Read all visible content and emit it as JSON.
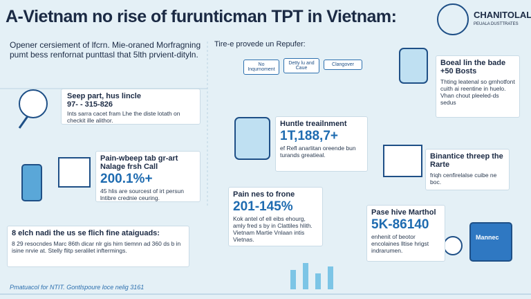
{
  "header": {
    "title": "A-Vietnam no rise of furunticman TPT in Vietnam:"
  },
  "logo": {
    "name": "CHANITOLAL",
    "tagline": "PEUALA DUSTTRATES"
  },
  "intro": {
    "text": "Opener cersiement of lfcrn. Mie-oraned Morfragning pumt bess renfornat punttasl that 5lth prvient-dityln."
  },
  "provider": {
    "heading": "Tire-e provede un Repufer:",
    "bubbles": [
      "No Inqurnoment",
      "Detty lu and Caue",
      "Clangover"
    ]
  },
  "cards": [
    {
      "heading": "Seep part, hus lincle",
      "figure": "97- - 315-826",
      "text": "Ints sarra cacet fram Lhe the diste lotath on checkit ille alithor."
    },
    {
      "heading": "Pain-wbeep tab gr-art Nalage frsh Call",
      "figure": "200.1%+",
      "text": "45 hlis are sourcest of irt persun lntibre crednie ceuring."
    },
    {
      "heading": "8 elch nadi the us se flich fine ataiguads:",
      "text": "8 29 resocndes Marc 86th dicar nlr gis hirn tiemnn ad 360 ds b in isine nrvie at. Stelly flitp seralilet inftermings."
    },
    {
      "heading": "Huntle treailnment",
      "figure": "1T,188,7+",
      "text": "ef Refl anarlitan oreende bun turands greatieal."
    },
    {
      "heading": "Pain nes to frone",
      "figure": "201-145%",
      "text": "Kok antel of ell eibs ehourg, amly fred s by in Clattiles hlith. Vietnam Martie Vnlaan intis Vietnas."
    },
    {
      "heading": "Boeal lin the bade +50 Bosts",
      "text": "Thting leatenal so grnhotfont cuith ai reentine in huelo. Vhan chout pleeled-ds sedus"
    },
    {
      "heading": "Binantice threep the Rarte",
      "text": "friqh cenfirelalse cuibe ne boc."
    },
    {
      "heading": "Pase hive Marthol",
      "figure": "5K-86140",
      "text": "enhenit of beotor encolaines lltise hrigst indrarumen."
    }
  ],
  "box_label": "Mannec",
  "footer": {
    "text": "Pmatuacol for NTIT. Gontlspoure loce nelig 3161"
  }
}
